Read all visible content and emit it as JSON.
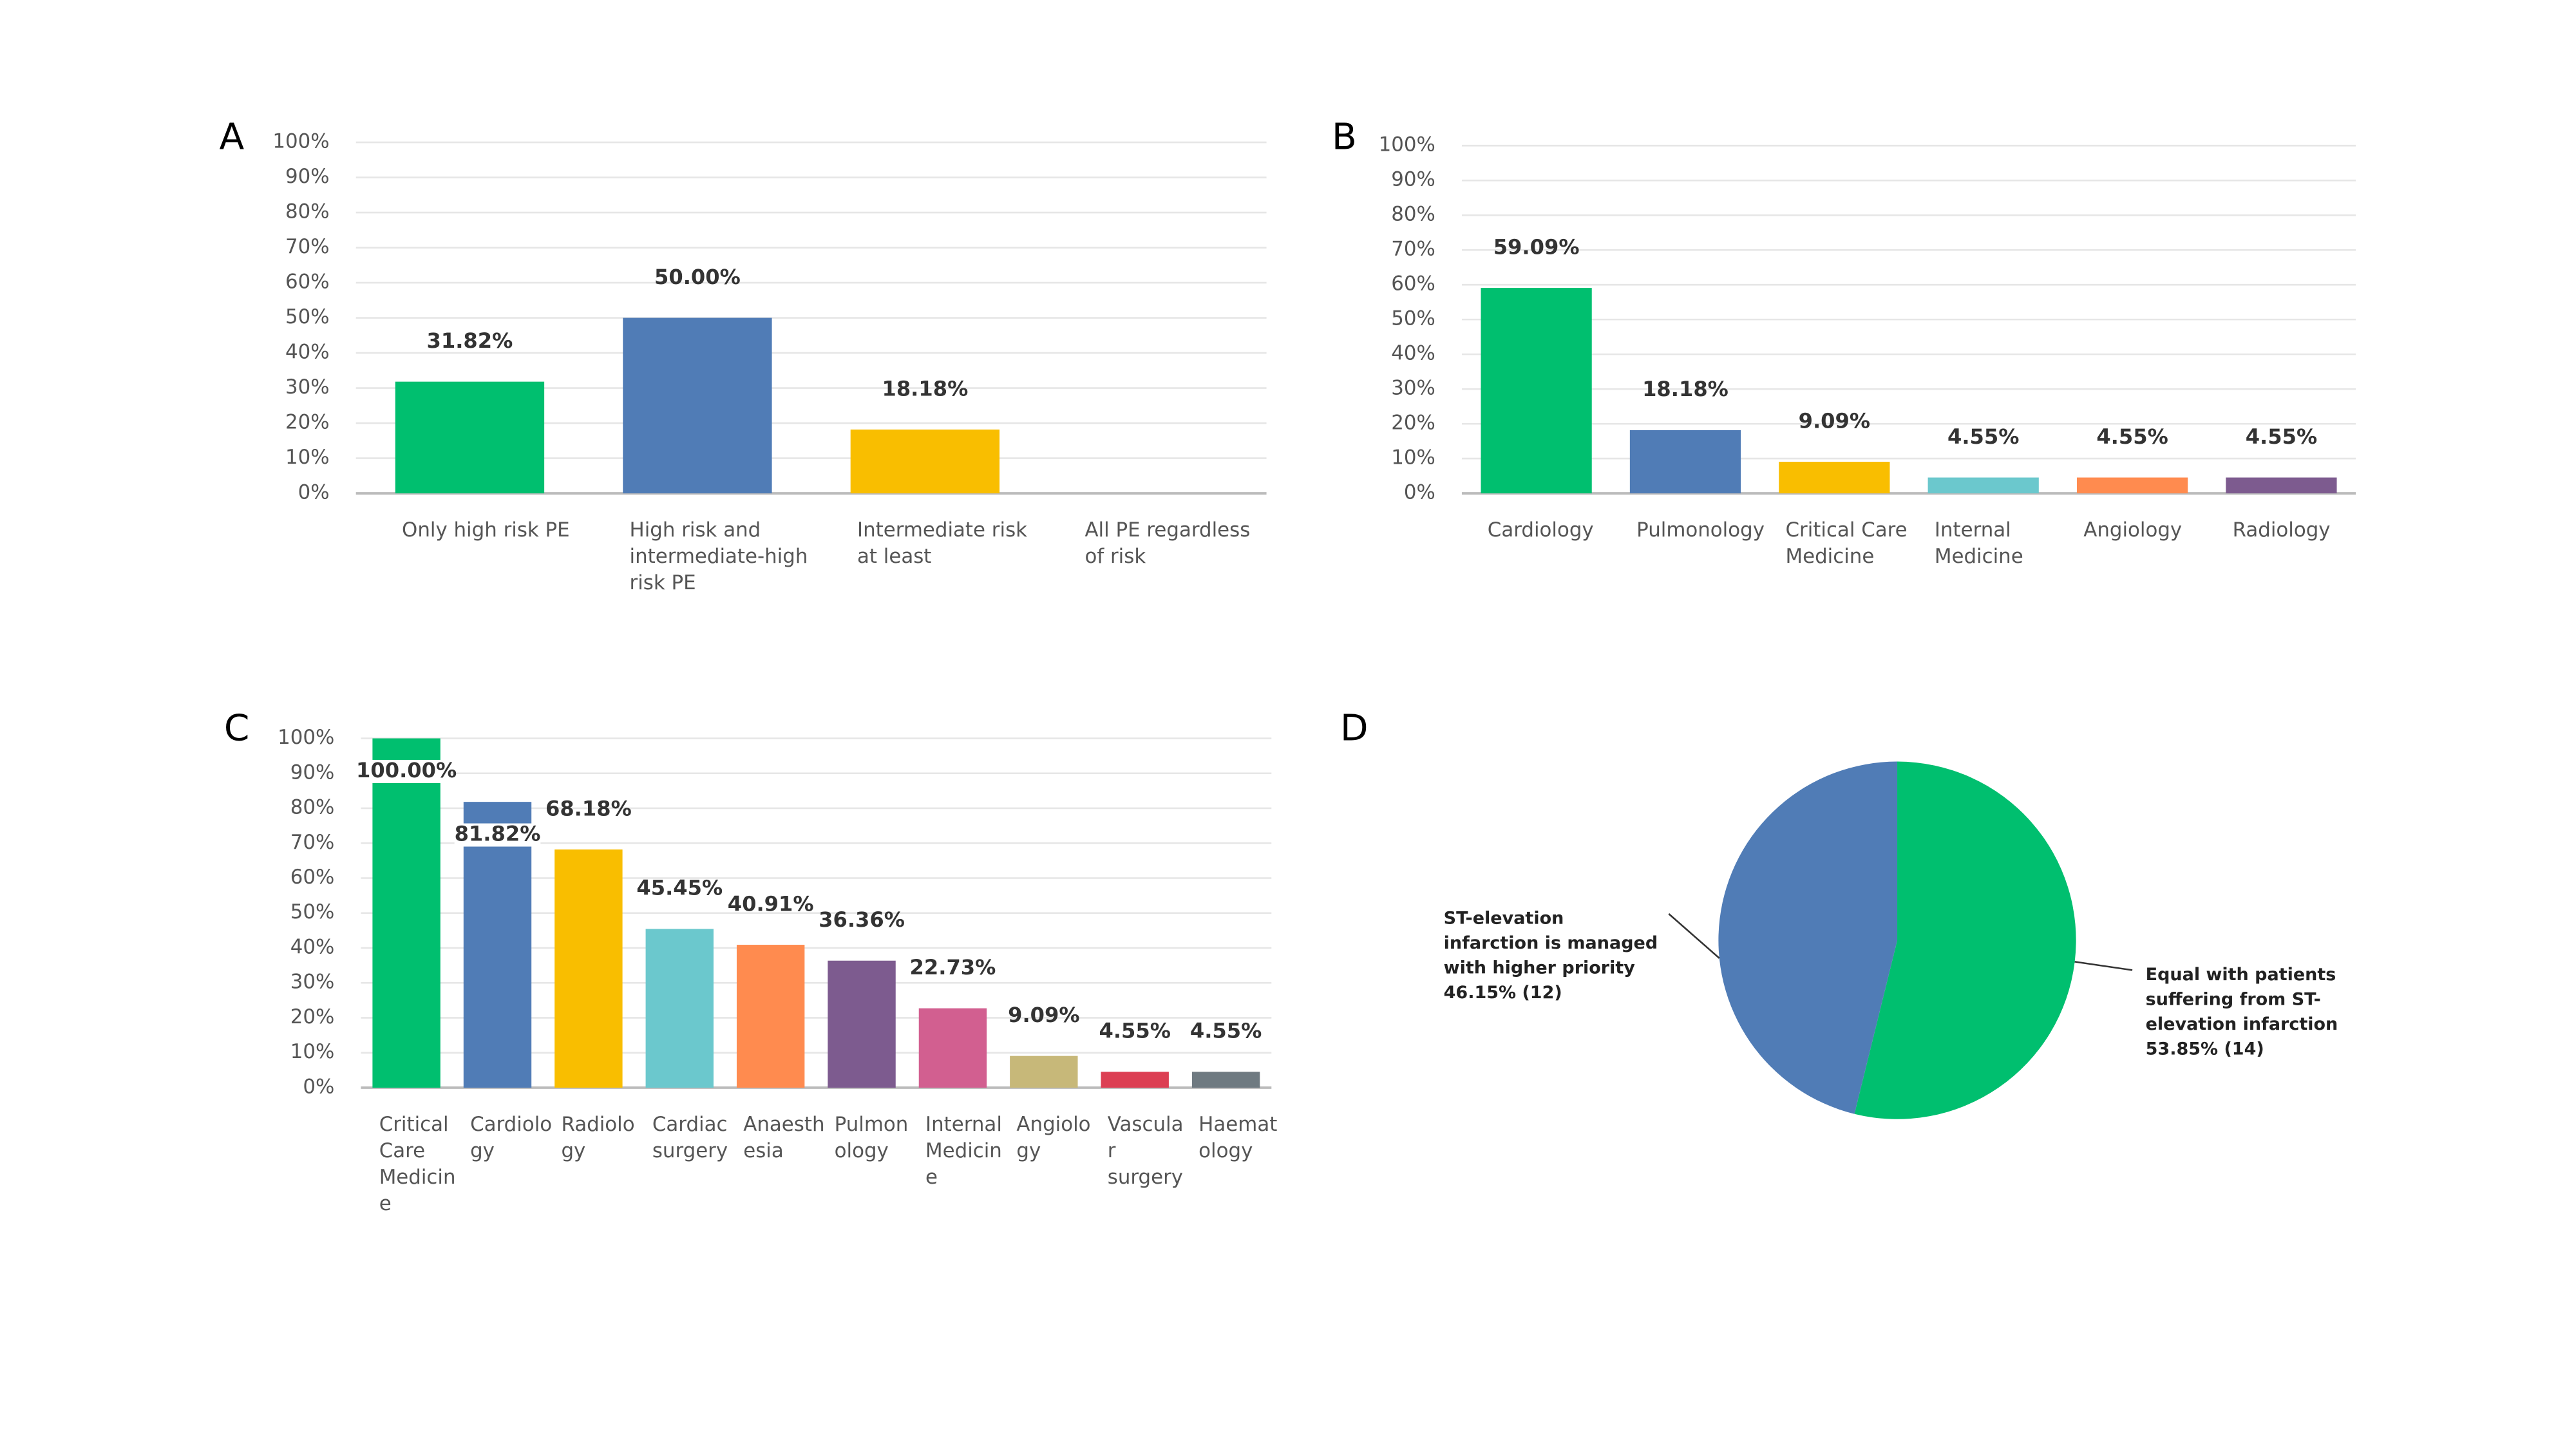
{
  "chart_data": [
    {
      "type": "bar",
      "panel": "A",
      "categories": [
        "Only high risk PE",
        "High risk and intermediate-high risk PE",
        "Intermediate risk at least",
        "All PE regardless of risk"
      ],
      "values": [
        31.82,
        50.0,
        18.18,
        0
      ],
      "value_labels": [
        "31.82%",
        "50.00%",
        "18.18%",
        null
      ],
      "colors": [
        "#00bf6f",
        "#507cb6",
        "#f9be00",
        "#6bc8cd"
      ],
      "ylim": [
        0,
        100
      ],
      "yticks": [
        {
          "value": 0,
          "label": "0%"
        },
        {
          "value": 10,
          "label": "10%"
        },
        {
          "value": 20,
          "label": "20%"
        },
        {
          "value": 30,
          "label": "30%"
        },
        {
          "value": 40,
          "label": "40%"
        },
        {
          "value": 50,
          "label": "50%"
        },
        {
          "value": 60,
          "label": "60%"
        },
        {
          "value": 70,
          "label": "70%"
        },
        {
          "value": 80,
          "label": "80%"
        },
        {
          "value": 90,
          "label": "90%"
        },
        {
          "value": 100,
          "label": "100%"
        }
      ],
      "grid": true
    },
    {
      "type": "bar",
      "panel": "B",
      "categories": [
        "Cardiology",
        "Pulmonology",
        "Critical Care Medicine",
        "Internal Medicine",
        "Angiology",
        "Radiology"
      ],
      "values": [
        59.09,
        18.18,
        9.09,
        4.55,
        4.55,
        4.55
      ],
      "value_labels": [
        "59.09%",
        "18.18%",
        "9.09%",
        "4.55%",
        "4.55%",
        "4.55%"
      ],
      "colors": [
        "#00bf6f",
        "#507cb6",
        "#f9be00",
        "#6bc8cd",
        "#ff8b4f",
        "#7d5b8f"
      ],
      "ylim": [
        0,
        100
      ],
      "yticks": [
        {
          "value": 0,
          "label": "0%"
        },
        {
          "value": 10,
          "label": "10%"
        },
        {
          "value": 20,
          "label": "20%"
        },
        {
          "value": 30,
          "label": "30%"
        },
        {
          "value": 40,
          "label": "40%"
        },
        {
          "value": 50,
          "label": "50%"
        },
        {
          "value": 60,
          "label": "60%"
        },
        {
          "value": 70,
          "label": "70%"
        },
        {
          "value": 80,
          "label": "80%"
        },
        {
          "value": 90,
          "label": "90%"
        },
        {
          "value": 100,
          "label": "100%"
        }
      ],
      "grid": true
    },
    {
      "type": "bar",
      "panel": "C",
      "categories": [
        "Critical Care Medicine",
        "Cardiology",
        "Radiology",
        "Cardiac surgery",
        "Anaesthesia",
        "Pulmonology",
        "Internal Medicine",
        "Angiology",
        "Vascular surgery",
        "Haematology"
      ],
      "values": [
        100.0,
        81.82,
        68.18,
        45.45,
        40.91,
        36.36,
        22.73,
        9.09,
        4.55,
        4.55
      ],
      "value_labels": [
        "100.00%",
        "81.82%",
        "68.18%",
        "45.45%",
        "40.91%",
        "36.36%",
        "22.73%",
        "9.09%",
        "4.55%",
        "4.55%"
      ],
      "colors": [
        "#00bf6f",
        "#507cb6",
        "#f9be00",
        "#6bc8cd",
        "#ff8b4f",
        "#7d5b8f",
        "#d25f90",
        "#c7b879",
        "#dc3f53",
        "#6f7a81"
      ],
      "ylim": [
        0,
        100
      ],
      "yticks": [
        {
          "value": 0,
          "label": "0%"
        },
        {
          "value": 10,
          "label": "10%"
        },
        {
          "value": 20,
          "label": "20%"
        },
        {
          "value": 30,
          "label": "30%"
        },
        {
          "value": 40,
          "label": "40%"
        },
        {
          "value": 50,
          "label": "50%"
        },
        {
          "value": 60,
          "label": "60%"
        },
        {
          "value": 70,
          "label": "70%"
        },
        {
          "value": 80,
          "label": "80%"
        },
        {
          "value": 90,
          "label": "90%"
        },
        {
          "value": 100,
          "label": "100%"
        }
      ],
      "grid": true
    },
    {
      "type": "pie",
      "panel": "D",
      "categories": [
        "Equal with patients suffering from ST-elevation infarction",
        "ST-elevation infarction is managed with higher priority"
      ],
      "values": [
        53.85,
        46.15
      ],
      "value_labels": [
        "53.85% (14)",
        "46.15% (12)"
      ],
      "colors": [
        "#00bf6f",
        "#507cb6"
      ]
    }
  ]
}
